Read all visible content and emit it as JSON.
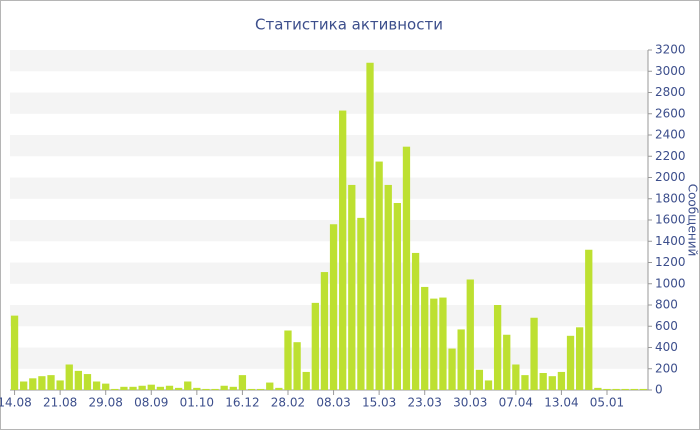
{
  "chart_data": {
    "type": "bar",
    "title": "Статистика активности",
    "y_label": "Сообщений",
    "categories": [
      "14.08",
      null,
      null,
      null,
      null,
      "21.08",
      null,
      null,
      null,
      null,
      "29.08",
      null,
      null,
      null,
      null,
      "08.09",
      null,
      null,
      null,
      null,
      "01.10",
      null,
      null,
      null,
      null,
      "16.12",
      null,
      null,
      null,
      null,
      "28.02",
      null,
      null,
      null,
      null,
      "08.03",
      null,
      null,
      null,
      null,
      "15.03",
      null,
      null,
      null,
      null,
      "23.03",
      null,
      null,
      null,
      null,
      "30.03",
      null,
      null,
      null,
      null,
      "07.04",
      null,
      null,
      null,
      null,
      "13.04",
      null,
      null,
      null,
      null,
      "05.01",
      null,
      null,
      null,
      null
    ],
    "values": [
      700,
      80,
      110,
      130,
      140,
      90,
      240,
      180,
      150,
      80,
      60,
      10,
      30,
      30,
      40,
      50,
      30,
      40,
      20,
      80,
      20,
      10,
      10,
      40,
      30,
      140,
      10,
      10,
      70,
      20,
      560,
      450,
      170,
      820,
      1110,
      1560,
      2630,
      1930,
      1620,
      3080,
      2150,
      1930,
      1760,
      2290,
      1290,
      970,
      860,
      870,
      390,
      570,
      1040,
      190,
      90,
      800,
      520,
      240,
      140,
      680,
      160,
      130,
      170,
      510,
      590,
      1320,
      20,
      10,
      10,
      10,
      10,
      10
    ],
    "color": "#bde031",
    "ylim": [
      0,
      3200
    ],
    "yticks": [
      0,
      200,
      400,
      600,
      800,
      1000,
      1200,
      1400,
      1600,
      1800,
      2000,
      2200,
      2400,
      2600,
      2800,
      3000,
      3200
    ],
    "y_axis_side": "right",
    "grid": true
  }
}
